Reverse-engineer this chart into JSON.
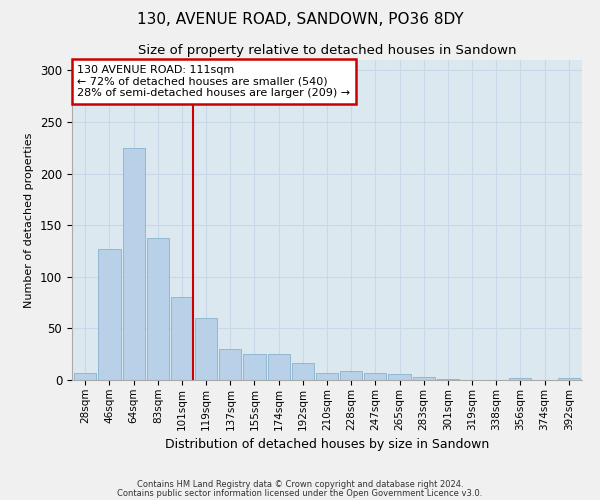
{
  "title": "130, AVENUE ROAD, SANDOWN, PO36 8DY",
  "subtitle": "Size of property relative to detached houses in Sandown",
  "xlabel": "Distribution of detached houses by size in Sandown",
  "ylabel": "Number of detached properties",
  "categories": [
    "28sqm",
    "46sqm",
    "64sqm",
    "83sqm",
    "101sqm",
    "119sqm",
    "137sqm",
    "155sqm",
    "174sqm",
    "192sqm",
    "210sqm",
    "228sqm",
    "247sqm",
    "265sqm",
    "283sqm",
    "301sqm",
    "319sqm",
    "338sqm",
    "356sqm",
    "374sqm",
    "392sqm"
  ],
  "values": [
    7,
    127,
    225,
    138,
    80,
    60,
    30,
    25,
    25,
    16,
    7,
    9,
    7,
    6,
    3,
    1,
    0,
    0,
    2,
    0,
    2
  ],
  "bar_color": "#b8d0e8",
  "bar_edge_color": "#7aaac8",
  "grid_color": "#c8d8e8",
  "background_color": "#dce8f0",
  "fig_background_color": "#f0f0f0",
  "annotation_box_text": "130 AVENUE ROAD: 111sqm\n← 72% of detached houses are smaller (540)\n28% of semi-detached houses are larger (209) →",
  "annotation_box_color": "#ffffff",
  "annotation_box_edge_color": "#cc0000",
  "red_line_color": "#cc0000",
  "footer_line1": "Contains HM Land Registry data © Crown copyright and database right 2024.",
  "footer_line2": "Contains public sector information licensed under the Open Government Licence v3.0.",
  "ylim": [
    0,
    310
  ],
  "title_fontsize": 11,
  "subtitle_fontsize": 9.5,
  "tick_fontsize": 7.5,
  "ylabel_fontsize": 8,
  "xlabel_fontsize": 9,
  "footer_fontsize": 6
}
